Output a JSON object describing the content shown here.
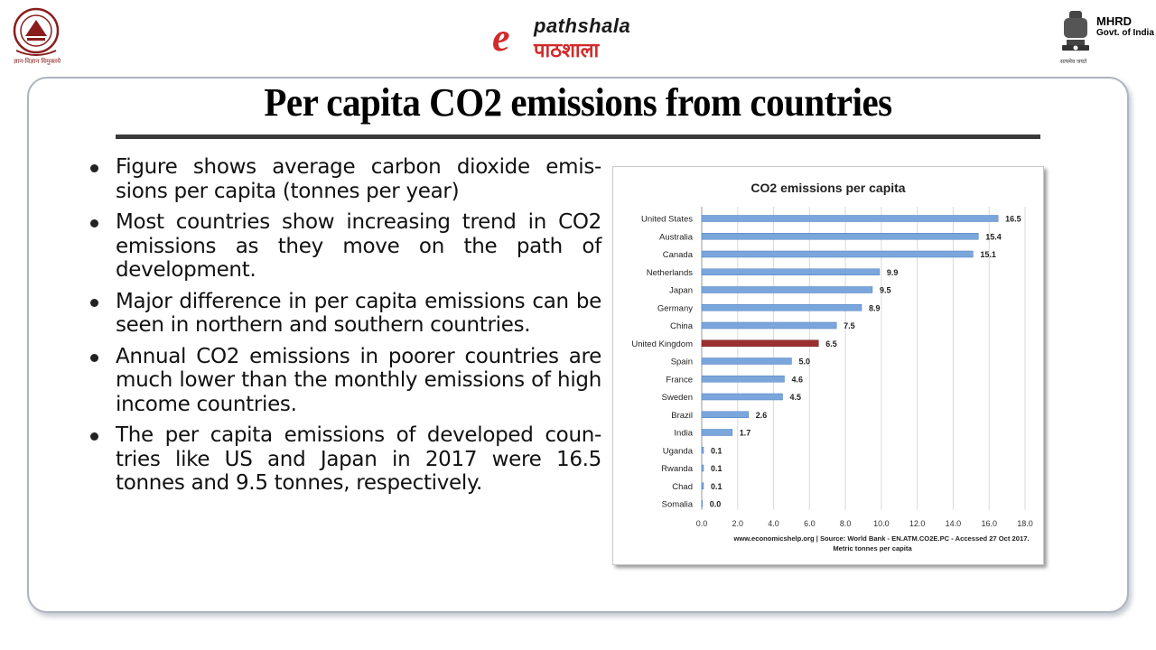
{
  "header": {
    "ugc_caption": "ज्ञान-विज्ञान विमुक्तये",
    "epg_letter": "e",
    "epg_name": "pathshala",
    "epg_hindi": "पाठशाला",
    "mhrd_title": "MHRD",
    "mhrd_subtitle": "Govt. of India",
    "mhrd_motto": "सत्यमेव जयते",
    "logo_colors": {
      "ugc": "#8a1c1c",
      "epathshala": "#d12a2a"
    }
  },
  "slide": {
    "title": "Per capita CO2 emissions from countries",
    "bullets": [
      "Figure shows average carbon dioxide emis-sions per capita (tonnes per year)",
      "Most countries show increasing trend in CO2 emissions as they move on the path of development.",
      "Major difference in per capita emissions can be seen in northern and southern countries.",
      "Annual CO2 emissions in poorer countries are much lower than the monthly emissions of high income countries.",
      "The per capita emissions of developed coun-tries like US and Japan in 2017 were 16.5 tonnes and 9.5 tonnes, respectively."
    ]
  },
  "chart_data": {
    "type": "bar",
    "orientation": "horizontal",
    "title": "CO2 emissions per capita",
    "xlabel": "Metric tonnes per capita",
    "source": "www.economicshelp.org | Source: World Bank - EN.ATM.CO2E.PC - Accessed 27 Oct 2017.",
    "categories": [
      "United States",
      "Australia",
      "Canada",
      "Netherlands",
      "Japan",
      "Germany",
      "China",
      "United Kingdom",
      "Spain",
      "France",
      "Sweden",
      "Brazil",
      "India",
      "Uganda",
      "Rwanda",
      "Chad",
      "Somalia"
    ],
    "values": [
      16.5,
      15.4,
      15.1,
      9.9,
      9.5,
      8.9,
      7.5,
      6.5,
      5.0,
      4.6,
      4.5,
      2.6,
      1.7,
      0.1,
      0.1,
      0.1,
      0.0
    ],
    "value_labels": [
      "16.5",
      "15.4",
      "15.1",
      "9.9",
      "9.5",
      "8.9",
      "7.5",
      "6.5",
      "5.0",
      "4.6",
      "4.5",
      "2.6",
      "1.7",
      "0.1",
      "0.1",
      "0.1",
      "0.0"
    ],
    "highlight_category": "United Kingdom",
    "xlim": [
      0,
      18
    ],
    "xticks": [
      "0.0",
      "2.0",
      "4.0",
      "6.0",
      "8.0",
      "10.0",
      "12.0",
      "14.0",
      "16.0",
      "18.0"
    ],
    "grid": true,
    "colors": {
      "bar": "#7aa6dc",
      "bar_edge": "#4f7fbf",
      "highlight": "#9b3030",
      "grid": "#d9d9d9"
    }
  }
}
